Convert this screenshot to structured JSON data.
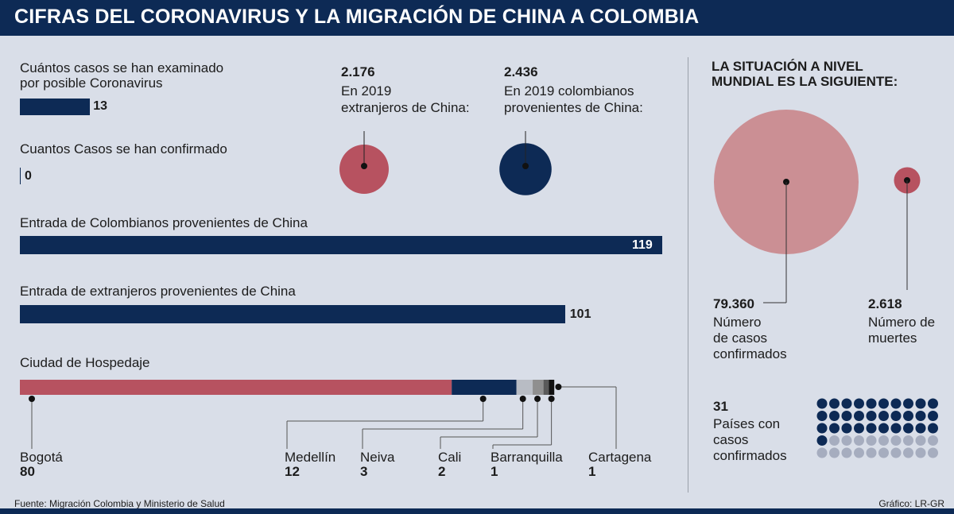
{
  "header": {
    "title": "CIFRAS DEL CORONAVIRUS Y LA MIGRACIÓN DE CHINA A COLOMBIA"
  },
  "colors": {
    "navy": "#0d2a55",
    "red": "#b75260",
    "pink": "#cb8f94",
    "grey_dot": "#a6adbf"
  },
  "chart_data": [
    {
      "type": "bar",
      "title": "",
      "categories": [
        "Cuántos casos se han examinado por posible Coronavirus",
        "Cuantos Casos se han confirmado",
        "Entrada de Colombianos provenientes de China",
        "Entrada de extranjeros provenientes de China"
      ],
      "values": [
        13,
        0,
        119,
        101
      ],
      "labels": [
        "13",
        "0",
        "119",
        "101"
      ]
    },
    {
      "type": "bar",
      "title": "Ciudad de Hospedaje",
      "stacked": true,
      "categories": [
        "Bogotá",
        "Medellín",
        "Neiva",
        "Cali",
        "Barranquilla",
        "Cartagena"
      ],
      "values": [
        80,
        12,
        3,
        2,
        1,
        1
      ],
      "labels": [
        "80",
        "12",
        "3",
        "2",
        "1",
        "1"
      ]
    },
    {
      "type": "scatter",
      "title": "",
      "bubbles": [
        {
          "value": 2176,
          "label": "2.176",
          "caption": [
            "En 2019",
            "extranjeros de China:"
          ]
        },
        {
          "value": 2436,
          "label": "2.436",
          "caption": [
            "En 2019 colombianos",
            "provenientes de China:"
          ]
        }
      ]
    },
    {
      "type": "scatter",
      "title": "LA SITUACIÓN A NIVEL MUNDIAL ES LA SIGUIENTE:",
      "bubbles": [
        {
          "value": 79360,
          "label": "79.360",
          "caption": [
            "Número",
            "de casos",
            "confirmados"
          ]
        },
        {
          "value": 2618,
          "label": "2.618",
          "caption": [
            "Número de",
            "muertes"
          ]
        }
      ]
    },
    {
      "type": "table",
      "title": "",
      "value": 31,
      "total_dots": 50,
      "label": "31",
      "caption": [
        "Países con",
        "casos",
        "confirmados"
      ]
    }
  ],
  "left": {
    "examined": {
      "label1": "Cuántos casos se han examinado",
      "label2": "por posible Coronavirus",
      "value": "13"
    },
    "confirmed": {
      "label": "Cuantos Casos se han confirmado",
      "value": "0"
    },
    "colombians": {
      "label": "Entrada de Colombianos provenientes de China",
      "value": "119"
    },
    "foreigners": {
      "label": "Entrada de extranjeros provenientes de China",
      "value": "101"
    },
    "cities": {
      "title": "Ciudad de Hospedaje"
    }
  },
  "footer": {
    "source": "Fuente: Migración Colombia y Ministerio de Salud",
    "credit": "Gráfico: LR-GR"
  }
}
